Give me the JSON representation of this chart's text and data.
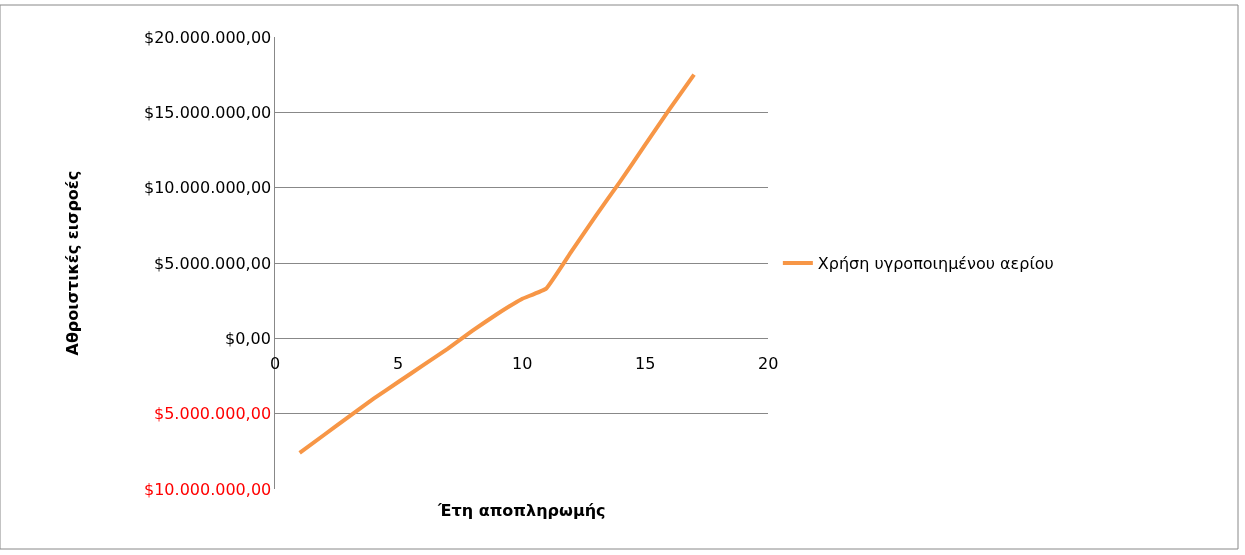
{
  "chart_data": {
    "type": "line",
    "xlabel": "Έτη αποπληρωμής",
    "ylabel": "Αθροιστικές εισροές",
    "x": [
      1,
      2,
      3,
      4,
      5,
      6,
      7,
      8,
      9,
      10,
      11,
      12,
      13,
      14,
      15,
      16,
      17
    ],
    "series": [
      {
        "name": "Χρήση υγροποιημένου αερίου",
        "color": "#f79646",
        "values": [
          -7600000,
          -6400000,
          -5200000,
          -4000000,
          -2900000,
          -1800000,
          -700000,
          500000,
          1600000,
          2600000,
          3300000,
          5700000,
          8100000,
          10400000,
          12800000,
          15200000,
          17500000
        ]
      }
    ],
    "xlim": [
      0,
      20
    ],
    "xticks": [
      0,
      5,
      10,
      15,
      20
    ],
    "ylim": [
      -10000000,
      20000000
    ],
    "yticks": [
      {
        "value": -10000000,
        "label": "$10.000.000,00"
      },
      {
        "value": -5000000,
        "label": "$5.000.000,00"
      },
      {
        "value": 0,
        "label": "$0,00"
      },
      {
        "value": 5000000,
        "label": "$5.000.000,00"
      },
      {
        "value": 10000000,
        "label": "$10.000.000,00"
      },
      {
        "value": 15000000,
        "label": "$15.000.000,00"
      },
      {
        "value": 20000000,
        "label": "$20.000.000,00"
      }
    ],
    "grid": "y",
    "legend": "right",
    "marker": "none",
    "line_style": "solid"
  }
}
